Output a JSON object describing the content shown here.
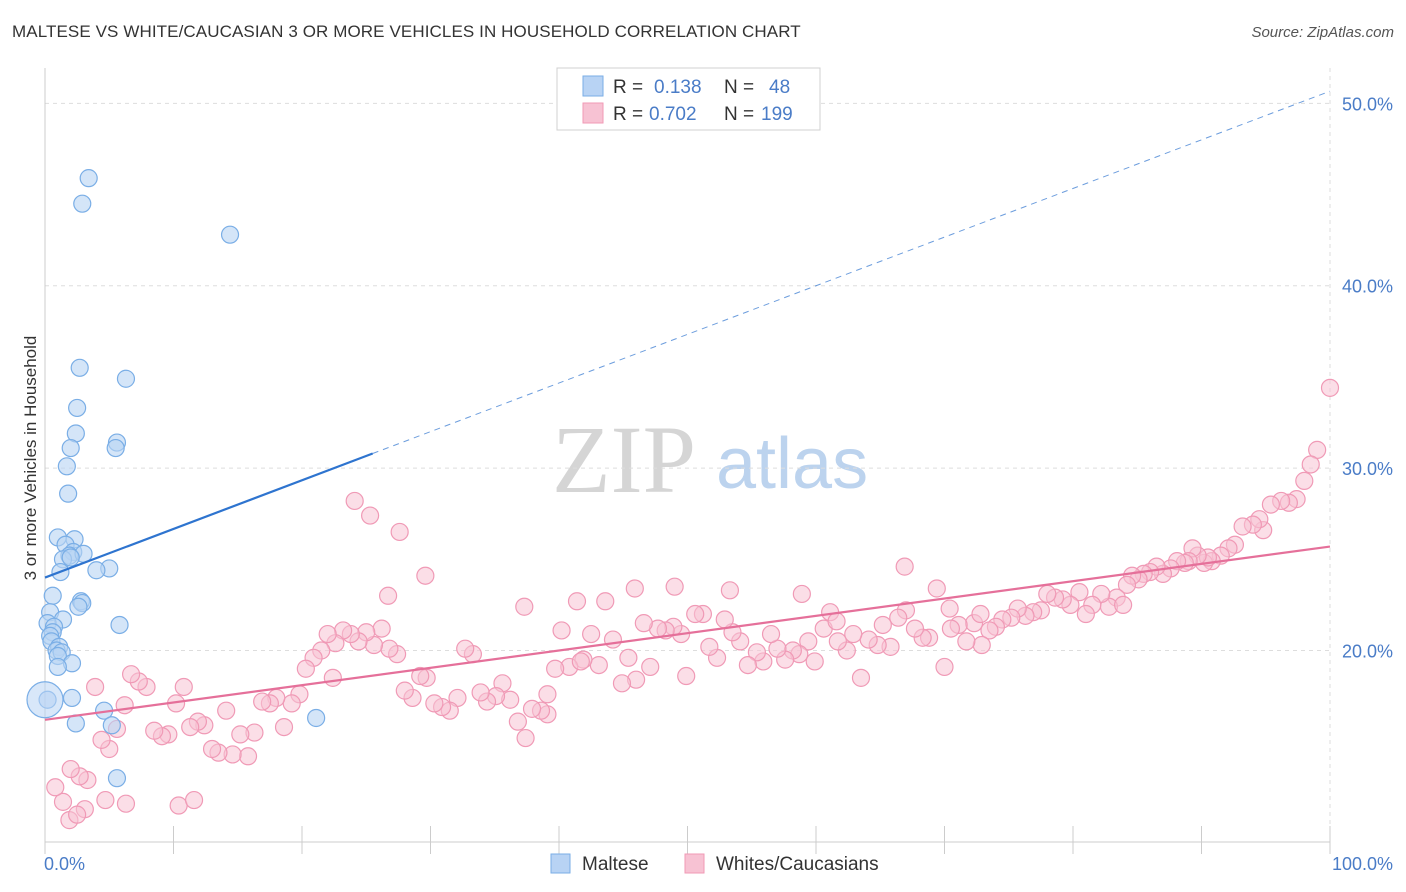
{
  "title": "MALTESE VS WHITE/CAUCASIAN 3 OR MORE VEHICLES IN HOUSEHOLD CORRELATION CHART",
  "source": "Source: ZipAtlas.com",
  "watermark": {
    "part1": "ZIP",
    "part2": "atlas"
  },
  "colors": {
    "blue_fill": "#b8d3f4",
    "blue_stroke": "#7aaee6",
    "blue_line": "#2e74cf",
    "pink_fill": "#f7c2d3",
    "pink_stroke": "#f09ab6",
    "pink_line": "#e5709a",
    "label_blue": "#4a7cc7",
    "grid": "#dddddd"
  },
  "legend": {
    "rows": [
      {
        "r_label": "R =",
        "r_value": "0.138",
        "n_label": "N =",
        "n_value": "48"
      },
      {
        "r_label": "R =",
        "r_value": "0.702",
        "n_label": "N =",
        "n_value": "199"
      }
    ]
  },
  "chart_data": {
    "type": "scatter",
    "title": "MALTESE VS WHITE/CAUCASIAN 3 OR MORE VEHICLES IN HOUSEHOLD CORRELATION CHART",
    "xlabel": "",
    "ylabel": "3 or more Vehicles in Household",
    "xlim": [
      0,
      100
    ],
    "ylim": [
      9.5,
      51.5
    ],
    "x_tick_labels": [
      "0.0%",
      "100.0%"
    ],
    "y_ticks": [
      20,
      30,
      40,
      50
    ],
    "y_tick_labels": [
      "20.0%",
      "30.0%",
      "40.0%",
      "50.0%"
    ],
    "grid": true,
    "legend_position": "top-center",
    "series": [
      {
        "name": "Maltese",
        "r": 0.138,
        "n": 48,
        "trend": {
          "x0": 0,
          "y0": 24.0,
          "x1": 25.5,
          "y1": 30.8,
          "dashed_to_x": 100
        },
        "points": [
          [
            3.4,
            45.9
          ],
          [
            2.9,
            44.5
          ],
          [
            14.4,
            42.8
          ],
          [
            2.7,
            35.5
          ],
          [
            6.3,
            34.9
          ],
          [
            2.5,
            33.3
          ],
          [
            2.4,
            31.9
          ],
          [
            5.6,
            31.4
          ],
          [
            5.5,
            31.1
          ],
          [
            2.0,
            31.1
          ],
          [
            1.7,
            30.1
          ],
          [
            1.8,
            28.6
          ],
          [
            1.0,
            26.2
          ],
          [
            2.3,
            26.1
          ],
          [
            1.6,
            25.8
          ],
          [
            2.2,
            25.4
          ],
          [
            1.9,
            25.2
          ],
          [
            3.0,
            25.3
          ],
          [
            1.4,
            25.0
          ],
          [
            2.0,
            25.1
          ],
          [
            1.2,
            24.3
          ],
          [
            5.0,
            24.5
          ],
          [
            4.0,
            24.4
          ],
          [
            0.6,
            23.0
          ],
          [
            2.8,
            22.7
          ],
          [
            2.9,
            22.6
          ],
          [
            2.6,
            22.4
          ],
          [
            0.4,
            22.1
          ],
          [
            1.4,
            21.7
          ],
          [
            0.2,
            21.5
          ],
          [
            5.8,
            21.4
          ],
          [
            0.7,
            21.3
          ],
          [
            0.6,
            21.0
          ],
          [
            0.4,
            20.8
          ],
          [
            0.5,
            20.5
          ],
          [
            1.1,
            20.2
          ],
          [
            0.9,
            20.0
          ],
          [
            1.3,
            19.9
          ],
          [
            1.0,
            19.7
          ],
          [
            2.1,
            19.3
          ],
          [
            1.0,
            19.1
          ],
          [
            0.2,
            17.3
          ],
          [
            2.1,
            17.4
          ],
          [
            4.6,
            16.7
          ],
          [
            2.4,
            16.0
          ],
          [
            21.1,
            16.3
          ],
          [
            5.2,
            15.9
          ],
          [
            5.6,
            13.0
          ]
        ]
      },
      {
        "name": "Whites/Caucasians",
        "r": 0.702,
        "n": 199,
        "trend": {
          "x0": 0,
          "y0": 16.2,
          "x1": 100,
          "y1": 25.7
        },
        "points": [
          [
            100,
            34.4
          ],
          [
            99.0,
            31.0
          ],
          [
            98.5,
            30.2
          ],
          [
            98.0,
            29.3
          ],
          [
            97.4,
            28.3
          ],
          [
            96.8,
            28.1
          ],
          [
            96.2,
            28.2
          ],
          [
            95.4,
            28.0
          ],
          [
            94.8,
            26.6
          ],
          [
            94.5,
            27.2
          ],
          [
            94.0,
            26.9
          ],
          [
            93.2,
            26.8
          ],
          [
            92.6,
            25.8
          ],
          [
            92.1,
            25.6
          ],
          [
            91.5,
            25.2
          ],
          [
            90.8,
            24.9
          ],
          [
            90.2,
            24.8
          ],
          [
            90.5,
            25.1
          ],
          [
            89.7,
            25.2
          ],
          [
            89.3,
            25.6
          ],
          [
            89.0,
            24.9
          ],
          [
            88.7,
            24.8
          ],
          [
            88.1,
            24.9
          ],
          [
            87.6,
            24.5
          ],
          [
            87.0,
            24.2
          ],
          [
            86.5,
            24.6
          ],
          [
            86.0,
            24.3
          ],
          [
            85.5,
            24.2
          ],
          [
            85.1,
            23.9
          ],
          [
            84.6,
            24.1
          ],
          [
            84.2,
            23.6
          ],
          [
            83.4,
            22.9
          ],
          [
            82.8,
            22.4
          ],
          [
            82.2,
            23.1
          ],
          [
            81.5,
            22.5
          ],
          [
            81.0,
            22.0
          ],
          [
            80.5,
            23.2
          ],
          [
            79.8,
            22.5
          ],
          [
            79.2,
            22.8
          ],
          [
            78.6,
            22.9
          ],
          [
            78.0,
            23.1
          ],
          [
            77.5,
            22.2
          ],
          [
            76.9,
            22.1
          ],
          [
            76.3,
            21.9
          ],
          [
            75.7,
            22.3
          ],
          [
            75.2,
            21.8
          ],
          [
            74.5,
            21.7
          ],
          [
            74.0,
            21.3
          ],
          [
            73.5,
            21.1
          ],
          [
            72.9,
            20.3
          ],
          [
            72.3,
            21.5
          ],
          [
            71.7,
            20.5
          ],
          [
            71.1,
            21.4
          ],
          [
            70.5,
            21.2
          ],
          [
            70.0,
            19.1
          ],
          [
            69.4,
            23.4
          ],
          [
            68.8,
            20.7
          ],
          [
            68.3,
            20.7
          ],
          [
            67.7,
            21.2
          ],
          [
            67.0,
            22.2
          ],
          [
            66.4,
            21.8
          ],
          [
            65.8,
            20.2
          ],
          [
            65.2,
            21.4
          ],
          [
            64.8,
            20.3
          ],
          [
            64.1,
            20.6
          ],
          [
            63.5,
            18.5
          ],
          [
            62.9,
            20.9
          ],
          [
            62.4,
            20.0
          ],
          [
            61.7,
            20.5
          ],
          [
            61.1,
            22.1
          ],
          [
            60.6,
            21.2
          ],
          [
            59.9,
            19.4
          ],
          [
            59.4,
            20.5
          ],
          [
            58.7,
            19.8
          ],
          [
            58.2,
            20.0
          ],
          [
            57.6,
            19.5
          ],
          [
            57.0,
            20.1
          ],
          [
            56.5,
            20.9
          ],
          [
            55.9,
            19.4
          ],
          [
            55.4,
            19.9
          ],
          [
            54.7,
            19.2
          ],
          [
            54.1,
            20.5
          ],
          [
            53.5,
            21.0
          ],
          [
            52.9,
            21.7
          ],
          [
            52.3,
            19.6
          ],
          [
            51.7,
            20.2
          ],
          [
            51.2,
            22.0
          ],
          [
            50.6,
            22.0
          ],
          [
            49.9,
            18.6
          ],
          [
            49.5,
            20.9
          ],
          [
            48.9,
            21.3
          ],
          [
            48.3,
            21.1
          ],
          [
            47.7,
            21.2
          ],
          [
            47.1,
            19.1
          ],
          [
            46.6,
            21.5
          ],
          [
            46.0,
            18.4
          ],
          [
            45.4,
            19.6
          ],
          [
            44.9,
            18.2
          ],
          [
            44.2,
            20.6
          ],
          [
            43.6,
            22.7
          ],
          [
            43.1,
            19.2
          ],
          [
            42.5,
            20.9
          ],
          [
            41.9,
            19.5
          ],
          [
            41.4,
            22.7
          ],
          [
            40.8,
            19.1
          ],
          [
            40.2,
            21.1
          ],
          [
            39.7,
            19.0
          ],
          [
            39.1,
            16.5
          ],
          [
            38.6,
            16.7
          ],
          [
            37.9,
            16.8
          ],
          [
            37.4,
            15.2
          ],
          [
            36.8,
            16.1
          ],
          [
            36.2,
            17.3
          ],
          [
            35.6,
            18.2
          ],
          [
            35.1,
            17.5
          ],
          [
            34.4,
            17.2
          ],
          [
            33.9,
            17.7
          ],
          [
            33.3,
            19.8
          ],
          [
            32.7,
            20.1
          ],
          [
            32.1,
            17.4
          ],
          [
            31.5,
            16.7
          ],
          [
            30.9,
            16.9
          ],
          [
            30.3,
            17.1
          ],
          [
            29.7,
            18.5
          ],
          [
            29.2,
            18.6
          ],
          [
            28.6,
            17.4
          ],
          [
            28.0,
            17.8
          ],
          [
            27.4,
            19.8
          ],
          [
            26.8,
            20.1
          ],
          [
            26.2,
            21.2
          ],
          [
            25.6,
            20.3
          ],
          [
            25.0,
            21.0
          ],
          [
            24.4,
            20.5
          ],
          [
            23.8,
            20.9
          ],
          [
            23.2,
            21.1
          ],
          [
            22.6,
            20.4
          ],
          [
            22.0,
            20.9
          ],
          [
            21.5,
            20.0
          ],
          [
            20.9,
            19.6
          ],
          [
            20.3,
            19.0
          ],
          [
            19.8,
            17.6
          ],
          [
            19.2,
            17.1
          ],
          [
            18.6,
            15.8
          ],
          [
            18.0,
            17.4
          ],
          [
            17.5,
            17.1
          ],
          [
            16.9,
            17.2
          ],
          [
            16.3,
            15.5
          ],
          [
            15.8,
            14.2
          ],
          [
            15.2,
            15.4
          ],
          [
            14.6,
            14.3
          ],
          [
            14.1,
            16.7
          ],
          [
            13.5,
            14.4
          ],
          [
            13.0,
            14.6
          ],
          [
            12.4,
            15.9
          ],
          [
            11.9,
            16.1
          ],
          [
            11.3,
            15.8
          ],
          [
            10.8,
            18.0
          ],
          [
            10.2,
            17.1
          ],
          [
            9.6,
            15.4
          ],
          [
            9.1,
            15.3
          ],
          [
            8.5,
            15.6
          ],
          [
            7.9,
            18.0
          ],
          [
            7.3,
            18.3
          ],
          [
            6.7,
            18.7
          ],
          [
            6.2,
            17.0
          ],
          [
            5.6,
            15.7
          ],
          [
            5.0,
            14.6
          ],
          [
            4.4,
            15.1
          ],
          [
            3.9,
            18.0
          ],
          [
            3.3,
            12.9
          ],
          [
            2.7,
            13.1
          ],
          [
            2.0,
            13.5
          ],
          [
            1.4,
            11.7
          ],
          [
            0.8,
            12.5
          ],
          [
            1.9,
            10.7
          ],
          [
            3.1,
            11.3
          ],
          [
            2.5,
            11.0
          ],
          [
            4.7,
            11.8
          ],
          [
            6.3,
            11.6
          ],
          [
            10.4,
            11.5
          ],
          [
            11.6,
            11.8
          ],
          [
            22.4,
            18.5
          ],
          [
            24.1,
            28.2
          ],
          [
            25.3,
            27.4
          ],
          [
            26.7,
            23.0
          ],
          [
            27.6,
            26.5
          ],
          [
            29.6,
            24.1
          ],
          [
            37.3,
            22.4
          ],
          [
            39.1,
            17.6
          ],
          [
            41.7,
            19.4
          ],
          [
            45.9,
            23.4
          ],
          [
            49.0,
            23.5
          ],
          [
            53.3,
            23.3
          ],
          [
            58.9,
            23.1
          ],
          [
            61.6,
            21.6
          ],
          [
            66.9,
            24.6
          ],
          [
            70.4,
            22.3
          ],
          [
            72.8,
            22.0
          ],
          [
            83.9,
            22.5
          ]
        ]
      }
    ]
  },
  "bottom_legend": [
    {
      "name": "Maltese"
    },
    {
      "name": "Whites/Caucasians"
    }
  ]
}
